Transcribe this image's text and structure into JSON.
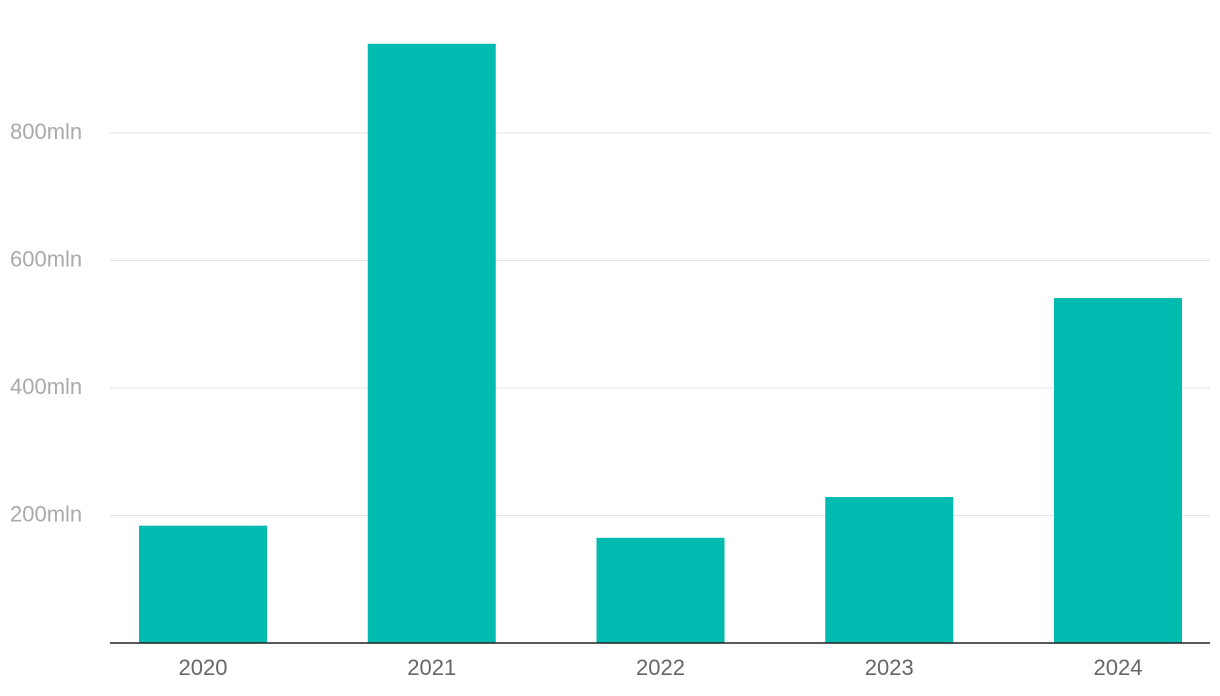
{
  "chart_data": {
    "type": "bar",
    "categories": [
      "2020",
      "2021",
      "2022",
      "2023",
      "2024"
    ],
    "values": [
      184,
      940,
      165,
      229,
      541
    ],
    "color": "#00bbb0",
    "ylim": [
      0,
      1000
    ],
    "yticks": [
      {
        "value": 200,
        "label": "200mln"
      },
      {
        "value": 400,
        "label": "400mln"
      },
      {
        "value": 600,
        "label": "600mln"
      },
      {
        "value": 800,
        "label": "800mln"
      }
    ],
    "grid": true
  }
}
